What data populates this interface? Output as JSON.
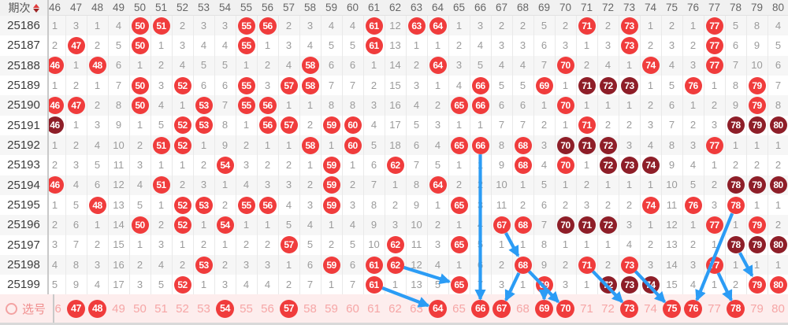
{
  "table": {
    "corner_label": "期次",
    "footer_label": "选号",
    "columns": [
      "46",
      "47",
      "48",
      "49",
      "50",
      "51",
      "52",
      "53",
      "54",
      "55",
      "56",
      "57",
      "58",
      "59",
      "60",
      "61",
      "62",
      "63",
      "64",
      "65",
      "66",
      "67",
      "68",
      "69",
      "70",
      "71",
      "72",
      "73",
      "74",
      "75",
      "76",
      "77",
      "78",
      "79",
      "80"
    ],
    "cell_legend": {
      "plain": "miss-count",
      "*": "drawn-ball",
      "#": "repeat-run-ball"
    },
    "rows": [
      {
        "period": "25186",
        "cells": [
          "1",
          "3",
          "1",
          "4",
          "*50",
          "*51",
          "2",
          "3",
          "3",
          "*55",
          "*56",
          "2",
          "3",
          "4",
          "4",
          "*61",
          "12",
          "*63",
          "*64",
          "1",
          "3",
          "2",
          "2",
          "5",
          "2",
          "*71",
          "2",
          "*73",
          "1",
          "2",
          "1",
          "*77",
          "5",
          "8",
          "4"
        ]
      },
      {
        "period": "25187",
        "cells": [
          "2",
          "*47",
          "2",
          "5",
          "*50",
          "1",
          "3",
          "4",
          "4",
          "*55",
          "1",
          "3",
          "4",
          "5",
          "5",
          "*61",
          "13",
          "1",
          "1",
          "2",
          "4",
          "3",
          "3",
          "6",
          "3",
          "1",
          "3",
          "*73",
          "2",
          "3",
          "2",
          "*77",
          "6",
          "9",
          "5"
        ]
      },
      {
        "period": "25188",
        "cells": [
          "*46",
          "1",
          "*48",
          "6",
          "1",
          "2",
          "4",
          "5",
          "5",
          "1",
          "2",
          "4",
          "*58",
          "6",
          "6",
          "1",
          "14",
          "2",
          "*64",
          "3",
          "5",
          "4",
          "4",
          "7",
          "*70",
          "2",
          "4",
          "1",
          "*74",
          "4",
          "3",
          "*77",
          "7",
          "10",
          "6"
        ]
      },
      {
        "period": "25189",
        "cells": [
          "1",
          "2",
          "1",
          "7",
          "*50",
          "3",
          "*52",
          "6",
          "6",
          "*55",
          "3",
          "*57",
          "*58",
          "7",
          "7",
          "2",
          "15",
          "3",
          "1",
          "4",
          "*66",
          "5",
          "5",
          "*69",
          "1",
          "#71",
          "#72",
          "#73",
          "1",
          "5",
          "*76",
          "1",
          "8",
          "*79",
          "7"
        ]
      },
      {
        "period": "25190",
        "cells": [
          "*46",
          "*47",
          "2",
          "8",
          "*50",
          "4",
          "1",
          "*53",
          "7",
          "*55",
          "*56",
          "1",
          "1",
          "8",
          "8",
          "3",
          "16",
          "4",
          "2",
          "*65",
          "*66",
          "6",
          "6",
          "1",
          "*70",
          "1",
          "1",
          "1",
          "2",
          "6",
          "1",
          "2",
          "9",
          "*79",
          "8"
        ]
      },
      {
        "period": "25191",
        "cells": [
          "#46",
          "1",
          "3",
          "9",
          "1",
          "5",
          "*52",
          "*53",
          "8",
          "1",
          "*56",
          "*57",
          "2",
          "*59",
          "*60",
          "4",
          "17",
          "5",
          "3",
          "1",
          "1",
          "7",
          "7",
          "2",
          "1",
          "*71",
          "2",
          "2",
          "3",
          "7",
          "2",
          "3",
          "#78",
          "#79",
          "#80"
        ]
      },
      {
        "period": "25192",
        "cells": [
          "1",
          "2",
          "4",
          "10",
          "2",
          "*51",
          "*52",
          "1",
          "9",
          "2",
          "1",
          "1",
          "*58",
          "1",
          "*60",
          "5",
          "18",
          "6",
          "4",
          "*65",
          "*66",
          "8",
          "*68",
          "3",
          "#70",
          "#71",
          "#72",
          "3",
          "4",
          "8",
          "3",
          "*77",
          "1",
          "1",
          "1"
        ]
      },
      {
        "period": "25193",
        "cells": [
          "2",
          "3",
          "5",
          "11",
          "3",
          "1",
          "1",
          "2",
          "*54",
          "3",
          "2",
          "2",
          "1",
          "*59",
          "1",
          "6",
          "*62",
          "7",
          "5",
          "1",
          "1",
          "9",
          "*68",
          "4",
          "*70",
          "1",
          "#72",
          "#73",
          "#74",
          "9",
          "4",
          "1",
          "2",
          "2",
          "2"
        ]
      },
      {
        "period": "25194",
        "cells": [
          "*46",
          "4",
          "6",
          "12",
          "4",
          "*51",
          "2",
          "3",
          "1",
          "4",
          "3",
          "3",
          "2",
          "*59",
          "2",
          "7",
          "1",
          "8",
          "*64",
          "2",
          "2",
          "10",
          "1",
          "5",
          "1",
          "2",
          "1",
          "1",
          "1",
          "10",
          "5",
          "2",
          "#78",
          "#79",
          "#80"
        ]
      },
      {
        "period": "25195",
        "cells": [
          "1",
          "5",
          "*48",
          "13",
          "5",
          "1",
          "*52",
          "*53",
          "2",
          "*55",
          "*56",
          "4",
          "3",
          "*59",
          "3",
          "8",
          "2",
          "9",
          "1",
          "*65",
          "3",
          "11",
          "2",
          "6",
          "2",
          "3",
          "2",
          "2",
          "*74",
          "11",
          "*76",
          "3",
          "*78",
          "1",
          "1"
        ]
      },
      {
        "period": "25196",
        "cells": [
          "2",
          "6",
          "1",
          "14",
          "*50",
          "2",
          "*52",
          "1",
          "*54",
          "1",
          "1",
          "5",
          "4",
          "1",
          "4",
          "9",
          "3",
          "10",
          "2",
          "1",
          "4",
          "*67",
          "*68",
          "7",
          "#70",
          "#71",
          "#72",
          "3",
          "1",
          "12",
          "1",
          "*77",
          "1",
          "*79",
          "2"
        ]
      },
      {
        "period": "25197",
        "cells": [
          "3",
          "7",
          "2",
          "15",
          "1",
          "3",
          "1",
          "2",
          "1",
          "2",
          "2",
          "*57",
          "5",
          "2",
          "5",
          "10",
          "*62",
          "11",
          "3",
          "*65",
          "5",
          "1",
          "1",
          "8",
          "1",
          "1",
          "1",
          "4",
          "2",
          "13",
          "2",
          "1",
          "#78",
          "#79",
          "#80"
        ]
      },
      {
        "period": "25198",
        "cells": [
          "4",
          "8",
          "3",
          "16",
          "2",
          "4",
          "2",
          "*53",
          "2",
          "3",
          "3",
          "1",
          "6",
          "*59",
          "6",
          "*61",
          "*62",
          "12",
          "4",
          "1",
          "6",
          "2",
          "*68",
          "9",
          "2",
          "*71",
          "2",
          "*73",
          "3",
          "14",
          "3",
          "*77",
          "1",
          "1",
          "1"
        ]
      },
      {
        "period": "25199",
        "cells": [
          "5",
          "9",
          "4",
          "17",
          "3",
          "5",
          "*52",
          "1",
          "3",
          "4",
          "4",
          "2",
          "7",
          "1",
          "7",
          "*61",
          "1",
          "13",
          "5",
          "*65",
          "7",
          "3",
          "1",
          "*69",
          "3",
          "1",
          "#72",
          "#73",
          "#74",
          "15",
          "4",
          "1",
          "2",
          "*79",
          "*80"
        ]
      }
    ],
    "footer_selected": [
      47,
      48,
      54,
      57,
      64,
      66,
      67,
      69,
      70,
      73,
      75,
      76,
      78
    ]
  },
  "arrows": [
    {
      "from_period": "25192",
      "from_col": 66,
      "to_period": "footer",
      "to_col": 66
    },
    {
      "from_period": "25198",
      "from_col": 62,
      "to_period": "25199",
      "to_col": 65
    },
    {
      "from_period": "25199",
      "from_col": 61,
      "to_period": "footer",
      "to_col": 64
    },
    {
      "from_period": "25196",
      "from_col": 67,
      "to_period": "25198",
      "to_col": 68
    },
    {
      "from_period": "25198",
      "from_col": 68,
      "to_period": "footer",
      "to_col": 67
    },
    {
      "from_period": "25198",
      "from_col": 68,
      "to_period": "footer",
      "to_col": 70
    },
    {
      "from_period": "25199",
      "from_col": 69,
      "to_period": "footer",
      "to_col": 69
    },
    {
      "from_period": "25198",
      "from_col": 71,
      "to_period": "footer",
      "to_col": 73
    },
    {
      "from_period": "25198",
      "from_col": 73,
      "to_period": "footer",
      "to_col": 75
    },
    {
      "from_period": "25195",
      "from_col": 78,
      "to_period": "footer",
      "to_col": 76
    },
    {
      "from_period": "25198",
      "from_col": 77,
      "to_period": "footer",
      "to_col": 78
    },
    {
      "from_period": "25197",
      "from_col": 78,
      "to_period": "25199",
      "to_col": 79
    }
  ],
  "colors": {
    "hit_ball": "#f03c3c",
    "repeat_ball": "#8e1e28",
    "miss_text": "#9b9b9b",
    "arrow": "#2b9cf5",
    "footer_bg": "#fdeded",
    "footer_text": "#f6a6a6",
    "header_bg": "#f1f1f1",
    "stripe": "#f6f6f6"
  }
}
